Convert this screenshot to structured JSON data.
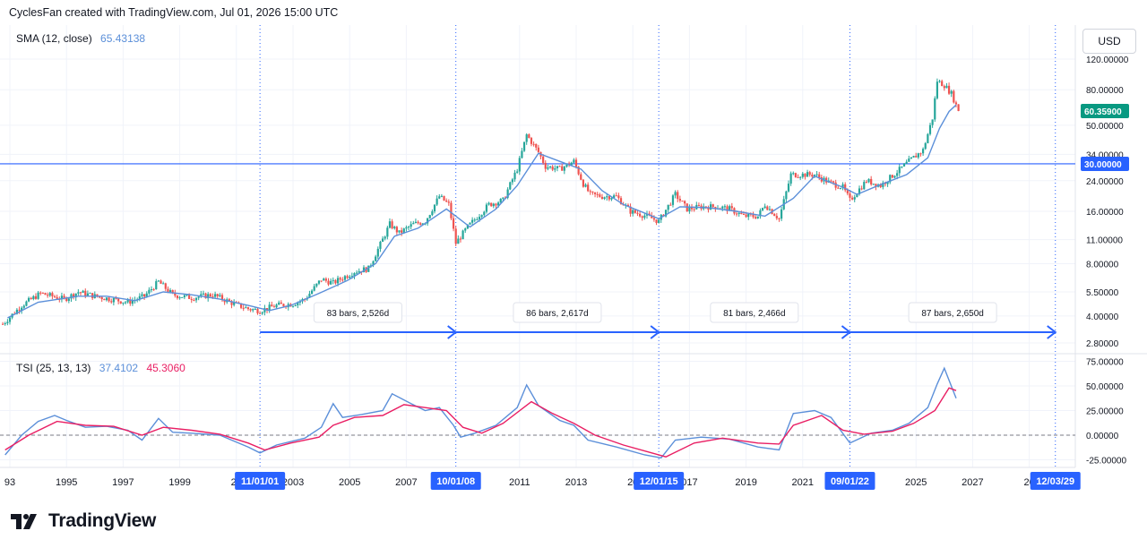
{
  "header": {
    "title": "CyclesFan created with TradingView.com, Jul 01, 2026 15:00 UTC"
  },
  "currency_button": "USD",
  "brand": "TradingView",
  "icons": {
    "logo": "tradingview-logo-icon"
  },
  "colors": {
    "up": "#26a69a",
    "down": "#ef5350",
    "sma": "#5b8fd9",
    "tsi": "#5b8fd9",
    "tsi_signal": "#e91e63",
    "accent": "#2962ff",
    "price_tag": "#089981",
    "grid": "#f0f3fa"
  },
  "chart_data": [
    {
      "type": "candlestick",
      "scale": "log",
      "ylim": [
        2.4,
        135
      ],
      "indicator": {
        "name": "SMA (12, close)",
        "value": "65.43138"
      },
      "y_tick_labels": [
        "120.00000",
        "80.00000",
        "50.00000",
        "34.00000",
        "24.00000",
        "16.00000",
        "11.00000",
        "8.00000",
        "5.50000",
        "4.00000",
        "2.80000"
      ],
      "y_ticks": [
        120,
        80,
        50,
        34,
        24,
        16,
        11,
        8,
        5.5,
        4,
        2.8
      ],
      "price_labels": [
        {
          "value": 60.359,
          "text": "60.35900",
          "kind": "last"
        },
        {
          "value": 30,
          "text": "30.00000",
          "kind": "horizontal-line"
        }
      ],
      "horizontal_line": 30,
      "x_tick_labels": [
        {
          "date": "1993-01-01",
          "text": "93"
        },
        {
          "date": "1995-01-01",
          "text": "1995"
        },
        {
          "date": "1997-01-01",
          "text": "1997"
        },
        {
          "date": "1999-01-01",
          "text": "1999"
        },
        {
          "date": "2001-01-01",
          "text": "20"
        },
        {
          "date": "2003-01-01",
          "text": "2003"
        },
        {
          "date": "2005-01-01",
          "text": "2005"
        },
        {
          "date": "2007-01-01",
          "text": "2007"
        },
        {
          "date": "2011-01-01",
          "text": "2011"
        },
        {
          "date": "2013-01-01",
          "text": "2013"
        },
        {
          "date": "2015-01-01",
          "text": "20"
        },
        {
          "date": "2017-01-01",
          "text": "017"
        },
        {
          "date": "2019-01-01",
          "text": "2019"
        },
        {
          "date": "2021-01-01",
          "text": "2021"
        },
        {
          "date": "2025-01-01",
          "text": "2025"
        },
        {
          "date": "2027-01-01",
          "text": "2027"
        },
        {
          "date": "2029-01-01",
          "text": "20"
        }
      ],
      "cycle_dates": [
        {
          "date": "2001-11-01",
          "text": "11/01/01"
        },
        {
          "date": "2008-10-01",
          "text": "10/01/08"
        },
        {
          "date": "2015-12-01",
          "text": "12/01/15"
        },
        {
          "date": "2022-09-01",
          "text": "09/01/22"
        },
        {
          "date": "2029-12-03",
          "text": "12/03/29"
        }
      ],
      "measurements": [
        "83 bars, 2,526d",
        "86 bars, 2,617d",
        "81 bars, 2,466d",
        "87 bars, 2,650d"
      ],
      "price_path": [
        [
          "1992-10-01",
          3.6
        ],
        [
          "1993-06-01",
          4.6
        ],
        [
          "1994-02-01",
          5.4
        ],
        [
          "1994-12-01",
          5.0
        ],
        [
          "1995-06-01",
          5.5
        ],
        [
          "1996-01-01",
          5.2
        ],
        [
          "1996-08-01",
          5.0
        ],
        [
          "1997-03-01",
          4.8
        ],
        [
          "1997-10-01",
          5.2
        ],
        [
          "1998-04-01",
          6.3
        ],
        [
          "1998-10-01",
          5.3
        ],
        [
          "1999-06-01",
          5.1
        ],
        [
          "2000-03-01",
          5.3
        ],
        [
          "2000-12-01",
          4.7
        ],
        [
          "2001-06-01",
          4.4
        ],
        [
          "2001-11-01",
          4.3
        ],
        [
          "2002-06-01",
          4.6
        ],
        [
          "2003-01-01",
          4.7
        ],
        [
          "2003-06-01",
          5.0
        ],
        [
          "2004-01-01",
          6.5
        ],
        [
          "2004-06-01",
          6.2
        ],
        [
          "2005-03-01",
          7.2
        ],
        [
          "2005-09-01",
          7.5
        ],
        [
          "2006-03-01",
          11.0
        ],
        [
          "2006-06-01",
          13.5
        ],
        [
          "2006-10-01",
          12.0
        ],
        [
          "2007-04-01",
          13.5
        ],
        [
          "2007-09-01",
          14.0
        ],
        [
          "2008-03-01",
          19.5
        ],
        [
          "2008-07-01",
          17.5
        ],
        [
          "2008-10-01",
          10.5
        ],
        [
          "2009-03-01",
          13.0
        ],
        [
          "2009-12-01",
          17.5
        ],
        [
          "2010-06-01",
          18.5
        ],
        [
          "2010-12-01",
          28.0
        ],
        [
          "2011-04-01",
          44.0
        ],
        [
          "2011-09-01",
          35.0
        ],
        [
          "2011-12-01",
          29.0
        ],
        [
          "2012-06-01",
          28.0
        ],
        [
          "2012-12-01",
          31.0
        ],
        [
          "2013-04-01",
          23.0
        ],
        [
          "2013-07-01",
          20.0
        ],
        [
          "2013-12-01",
          19.5
        ],
        [
          "2014-06-01",
          19.5
        ],
        [
          "2014-12-01",
          16.0
        ],
        [
          "2015-07-01",
          15.0
        ],
        [
          "2015-12-01",
          14.0
        ],
        [
          "2016-07-01",
          20.0
        ],
        [
          "2016-12-01",
          16.5
        ],
        [
          "2017-06-01",
          17.0
        ],
        [
          "2018-01-01",
          17.0
        ],
        [
          "2018-06-01",
          16.5
        ],
        [
          "2018-12-01",
          15.0
        ],
        [
          "2019-06-01",
          15.0
        ],
        [
          "2019-09-01",
          17.5
        ],
        [
          "2020-03-01",
          14.5
        ],
        [
          "2020-08-01",
          26.0
        ],
        [
          "2021-01-01",
          26.0
        ],
        [
          "2021-06-01",
          26.0
        ],
        [
          "2021-12-01",
          23.5
        ],
        [
          "2022-06-01",
          22.0
        ],
        [
          "2022-09-01",
          18.5
        ],
        [
          "2023-04-01",
          24.0
        ],
        [
          "2023-10-01",
          22.5
        ],
        [
          "2024-05-01",
          27.0
        ],
        [
          "2024-10-01",
          31.0
        ],
        [
          "2025-04-01",
          36.0
        ],
        [
          "2025-08-01",
          55.0
        ],
        [
          "2025-10-01",
          90.0
        ],
        [
          "2026-01-01",
          85.0
        ],
        [
          "2026-04-01",
          76.0
        ],
        [
          "2026-07-01",
          60.36
        ]
      ],
      "sma_path": [
        [
          "1992-12-01",
          3.9
        ],
        [
          "1994-01-01",
          4.8
        ],
        [
          "1995-06-01",
          5.2
        ],
        [
          "1996-06-01",
          5.2
        ],
        [
          "1997-06-01",
          4.9
        ],
        [
          "1998-06-01",
          5.5
        ],
        [
          "1999-06-01",
          5.3
        ],
        [
          "2000-06-01",
          5.0
        ],
        [
          "2001-06-01",
          4.6
        ],
        [
          "2002-03-01",
          4.3
        ],
        [
          "2002-12-01",
          4.6
        ],
        [
          "2003-12-01",
          5.4
        ],
        [
          "2004-12-01",
          6.4
        ],
        [
          "2005-12-01",
          8.0
        ],
        [
          "2006-08-01",
          11.5
        ],
        [
          "2007-06-01",
          12.8
        ],
        [
          "2008-06-01",
          16.5
        ],
        [
          "2009-04-01",
          13.0
        ],
        [
          "2010-03-01",
          16.5
        ],
        [
          "2010-12-01",
          22.5
        ],
        [
          "2011-09-01",
          34.5
        ],
        [
          "2012-06-01",
          31.0
        ],
        [
          "2013-03-01",
          28.0
        ],
        [
          "2013-12-01",
          21.0
        ],
        [
          "2014-09-01",
          17.5
        ],
        [
          "2015-12-01",
          14.5
        ],
        [
          "2016-09-01",
          17.0
        ],
        [
          "2017-09-01",
          16.8
        ],
        [
          "2018-09-01",
          16.0
        ],
        [
          "2019-09-01",
          15.0
        ],
        [
          "2020-09-01",
          19.0
        ],
        [
          "2021-06-01",
          25.5
        ],
        [
          "2022-06-01",
          22.0
        ],
        [
          "2022-12-01",
          20.0
        ],
        [
          "2023-09-01",
          22.5
        ],
        [
          "2024-09-01",
          26.0
        ],
        [
          "2025-06-01",
          32.5
        ],
        [
          "2025-11-01",
          48.0
        ],
        [
          "2026-03-01",
          60.0
        ],
        [
          "2026-06-01",
          65.43
        ]
      ]
    },
    {
      "type": "line",
      "indicator": {
        "name": "TSI (25, 13, 13)",
        "value": "37.4102",
        "signal_value": "45.3060"
      },
      "ylim": [
        -30,
        80
      ],
      "y_tick_labels": [
        "75.00000",
        "50.00000",
        "25.00000",
        "0.00000",
        "-25.00000"
      ],
      "y_ticks": [
        75,
        50,
        25,
        0,
        -25
      ],
      "zero_line": 0,
      "series": [
        {
          "key": "tsi",
          "points": [
            [
              "1992-11-01",
              -20
            ],
            [
              "1993-06-01",
              0
            ],
            [
              "1994-01-01",
              14
            ],
            [
              "1994-08-01",
              20
            ],
            [
              "1995-01-01",
              15
            ],
            [
              "1995-09-01",
              8
            ],
            [
              "1996-06-01",
              9
            ],
            [
              "1997-03-01",
              5
            ],
            [
              "1997-09-01",
              -5
            ],
            [
              "1998-04-01",
              17
            ],
            [
              "1998-10-01",
              3
            ],
            [
              "1999-06-01",
              2
            ],
            [
              "2000-06-01",
              0
            ],
            [
              "2001-06-01",
              -12
            ],
            [
              "2001-11-01",
              -18
            ],
            [
              "2002-06-01",
              -10
            ],
            [
              "2003-06-01",
              -3
            ],
            [
              "2004-01-01",
              8
            ],
            [
              "2004-06-01",
              32
            ],
            [
              "2004-10-01",
              18
            ],
            [
              "2005-06-01",
              21
            ],
            [
              "2006-03-01",
              25
            ],
            [
              "2006-07-01",
              42
            ],
            [
              "2007-03-01",
              32
            ],
            [
              "2007-09-01",
              25
            ],
            [
              "2008-03-01",
              28
            ],
            [
              "2008-09-01",
              10
            ],
            [
              "2008-12-01",
              -2
            ],
            [
              "2009-06-01",
              2
            ],
            [
              "2010-03-01",
              10
            ],
            [
              "2010-12-01",
              28
            ],
            [
              "2011-04-01",
              51
            ],
            [
              "2011-09-01",
              30
            ],
            [
              "2012-06-01",
              15
            ],
            [
              "2012-12-01",
              10
            ],
            [
              "2013-06-01",
              -5
            ],
            [
              "2014-06-01",
              -12
            ],
            [
              "2015-06-01",
              -20
            ],
            [
              "2016-01-01",
              -23
            ],
            [
              "2016-07-01",
              -5
            ],
            [
              "2017-06-01",
              -2
            ],
            [
              "2018-06-01",
              -4
            ],
            [
              "2019-06-01",
              -12
            ],
            [
              "2020-03-01",
              -15
            ],
            [
              "2020-09-01",
              22
            ],
            [
              "2021-06-01",
              25
            ],
            [
              "2022-01-01",
              18
            ],
            [
              "2022-09-01",
              -8
            ],
            [
              "2023-06-01",
              2
            ],
            [
              "2024-03-01",
              5
            ],
            [
              "2024-10-01",
              12
            ],
            [
              "2025-06-01",
              28
            ],
            [
              "2025-10-01",
              52
            ],
            [
              "2026-01-01",
              68
            ],
            [
              "2026-06-01",
              37.41
            ]
          ]
        },
        {
          "key": "tsi_signal",
          "points": [
            [
              "1992-11-01",
              -15
            ],
            [
              "1993-09-01",
              0
            ],
            [
              "1994-09-01",
              14
            ],
            [
              "1995-09-01",
              10
            ],
            [
              "1996-09-01",
              9
            ],
            [
              "1997-09-01",
              0
            ],
            [
              "1998-06-01",
              8
            ],
            [
              "1999-06-01",
              5
            ],
            [
              "2000-06-01",
              1
            ],
            [
              "2001-06-01",
              -8
            ],
            [
              "2002-01-01",
              -15
            ],
            [
              "2002-12-01",
              -8
            ],
            [
              "2003-12-01",
              -2
            ],
            [
              "2004-06-01",
              10
            ],
            [
              "2005-03-01",
              18
            ],
            [
              "2006-03-01",
              20
            ],
            [
              "2006-12-01",
              31
            ],
            [
              "2007-09-01",
              28
            ],
            [
              "2008-06-01",
              25
            ],
            [
              "2009-01-01",
              8
            ],
            [
              "2009-09-01",
              2
            ],
            [
              "2010-06-01",
              12
            ],
            [
              "2011-06-01",
              34
            ],
            [
              "2012-03-01",
              22
            ],
            [
              "2012-12-01",
              12
            ],
            [
              "2013-09-01",
              0
            ],
            [
              "2014-09-01",
              -10
            ],
            [
              "2015-09-01",
              -18
            ],
            [
              "2016-03-01",
              -22
            ],
            [
              "2017-03-01",
              -8
            ],
            [
              "2018-03-01",
              -3
            ],
            [
              "2019-06-01",
              -8
            ],
            [
              "2020-03-01",
              -9
            ],
            [
              "2020-09-01",
              10
            ],
            [
              "2021-09-01",
              20
            ],
            [
              "2022-06-01",
              5
            ],
            [
              "2023-03-01",
              1
            ],
            [
              "2024-03-01",
              4
            ],
            [
              "2024-12-01",
              12
            ],
            [
              "2025-09-01",
              25
            ],
            [
              "2026-03-01",
              48
            ],
            [
              "2026-06-01",
              45.31
            ]
          ]
        }
      ]
    }
  ]
}
